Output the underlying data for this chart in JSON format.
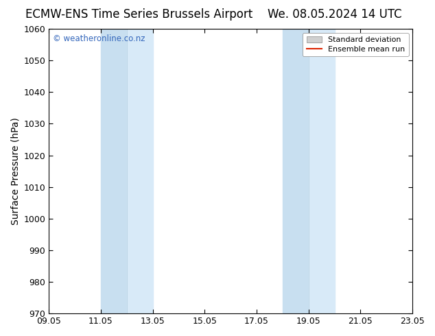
{
  "title_left": "ECMW-ENS Time Series Brussels Airport",
  "title_right": "We. 08.05.2024 14 UTC",
  "ylabel": "Surface Pressure (hPa)",
  "ylim": [
    970,
    1060
  ],
  "yticks": [
    970,
    980,
    990,
    1000,
    1010,
    1020,
    1030,
    1040,
    1050,
    1060
  ],
  "xlim_start": 0,
  "xlim_end": 14,
  "xtick_labels": [
    "09.05",
    "11.05",
    "13.05",
    "15.05",
    "17.05",
    "19.05",
    "21.05",
    "23.05"
  ],
  "xtick_positions": [
    0,
    2,
    4,
    6,
    8,
    10,
    12,
    14
  ],
  "shaded_bands": [
    {
      "x_start": 2,
      "x_end": 3,
      "color": "#cce0f0"
    },
    {
      "x_start": 3,
      "x_end": 4,
      "color": "#d8eaf8"
    },
    {
      "x_start": 9,
      "x_end": 10,
      "color": "#cce0f0"
    },
    {
      "x_start": 10,
      "x_end": 11,
      "color": "#d8eaf8"
    }
  ],
  "band_color": "#daeaf8",
  "watermark_text": "© weatheronline.co.nz",
  "watermark_color": "#3366bb",
  "background_color": "#ffffff",
  "legend_items": [
    {
      "label": "Standard deviation",
      "color": "#d0d0d0",
      "type": "patch"
    },
    {
      "label": "Ensemble mean run",
      "color": "#dd2200",
      "type": "line"
    }
  ],
  "title_fontsize": 12,
  "axis_label_fontsize": 10,
  "tick_fontsize": 9,
  "legend_fontsize": 8
}
